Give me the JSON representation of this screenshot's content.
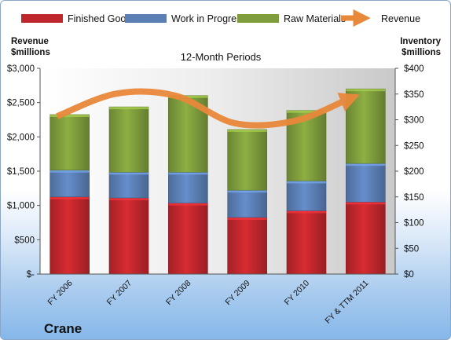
{
  "chart_data": {
    "type": "bar",
    "stacked": true,
    "title": "12-Month Periods",
    "company": "Crane",
    "categories": [
      "FY 2006",
      "FY 2007",
      "FY 2008",
      "FY 2009",
      "FY 2010",
      "FY & TTM 2011"
    ],
    "series": [
      {
        "name": "Finished Goods",
        "axis": "right",
        "color": "#c0272d",
        "values": [
          150,
          148,
          138,
          110,
          123,
          140
        ]
      },
      {
        "name": "Work in Progress",
        "axis": "right",
        "color": "#5b7fb5",
        "values": [
          52,
          50,
          60,
          53,
          58,
          75
        ]
      },
      {
        "name": "Raw Materials",
        "axis": "right",
        "color": "#7e9c3c",
        "values": [
          108,
          127,
          149,
          118,
          137,
          145
        ]
      },
      {
        "name": "Revenue",
        "axis": "left",
        "type": "line",
        "color": "#e8883a",
        "values": [
          2300,
          2630,
          2600,
          2200,
          2230,
          2540
        ]
      }
    ],
    "left_axis": {
      "label_line1": "Revenue",
      "label_line2": "$millions",
      "min": 0,
      "max": 3000,
      "step": 500,
      "ticks": [
        "$-",
        "$500",
        "$1,000",
        "$1,500",
        "$2,000",
        "$2,500",
        "$3,000"
      ]
    },
    "right_axis": {
      "label_line1": "Inventory",
      "label_line2": "$millions",
      "min": 0,
      "max": 400,
      "step": 50,
      "ticks": [
        "$0",
        "$50",
        "$100",
        "$150",
        "$200",
        "$250",
        "$300",
        "$350",
        "$400"
      ]
    },
    "legend_position": "top",
    "grid": false
  }
}
